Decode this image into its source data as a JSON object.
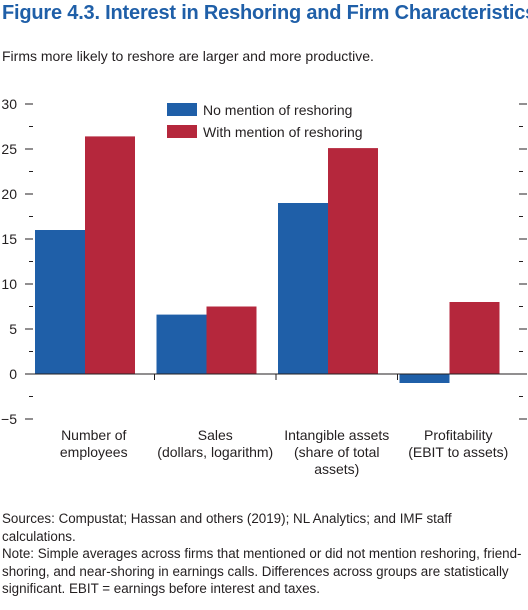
{
  "figure": {
    "title": "Figure 4.3.  Interest in Reshoring and Firm Characteristics",
    "subtitle": "Firms more likely to reshore are larger and more productive."
  },
  "colors": {
    "title": "#1f5fa8",
    "series_blue": "#1f5fa8",
    "series_red": "#b5273c",
    "axis": "#231f20"
  },
  "chart_data": {
    "type": "bar",
    "categories": [
      [
        "Number of",
        "employees"
      ],
      [
        "Sales",
        "(dollars, logarithm)"
      ],
      [
        "Intangible assets",
        "(share of total",
        "assets)"
      ],
      [
        "Profitability",
        "(EBIT to assets)"
      ]
    ],
    "series": [
      {
        "name": "No mention of reshoring",
        "color": "#1f5fa8",
        "values": [
          16.0,
          6.6,
          19.0,
          -1.0
        ]
      },
      {
        "name": "With mention of reshoring",
        "color": "#b5273c",
        "values": [
          26.4,
          7.5,
          25.1,
          8.0
        ]
      }
    ],
    "ylim": [
      -5,
      30
    ],
    "yticks": [
      -5,
      0,
      5,
      10,
      15,
      20,
      25,
      30
    ],
    "ytick_labels": [
      "−5",
      "0",
      "5",
      "10",
      "15",
      "20",
      "25",
      "30"
    ],
    "legend_position": "top-center",
    "grid": false
  },
  "notes": {
    "sources": "Sources: Compustat; Hassan and others (2019); NL Analytics; and IMF staff calculations.",
    "note": "Note: Simple averages across firms that mentioned or did not mention reshoring, friend-shoring, and near-shoring in earnings calls. Differences across groups are statistically significant. EBIT = earnings before interest and taxes."
  }
}
